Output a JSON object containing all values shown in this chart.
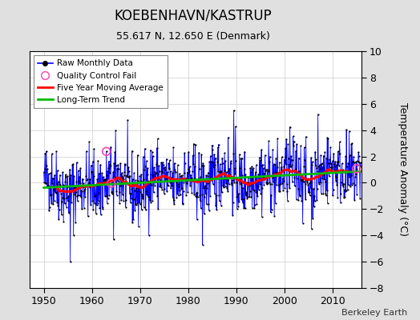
{
  "title": "KOEBENHAVN/KASTRUP",
  "subtitle": "55.617 N, 12.650 E (Denmark)",
  "ylabel": "Temperature Anomaly (°C)",
  "credit": "Berkeley Earth",
  "xlim": [
    1947,
    2016
  ],
  "ylim": [
    -8,
    10
  ],
  "yticks": [
    -8,
    -6,
    -4,
    -2,
    0,
    2,
    4,
    6,
    8,
    10
  ],
  "xticks": [
    1950,
    1960,
    1970,
    1980,
    1990,
    2000,
    2010
  ],
  "bg_color": "#e0e0e0",
  "plot_bg_color": "#ffffff",
  "raw_line_color": "#0000ff",
  "raw_dot_color": "#000000",
  "qc_fail_color": "#ff44aa",
  "moving_avg_color": "#ff0000",
  "trend_color": "#00bb00",
  "seed": 42,
  "n_months": 792,
  "start_year": 1950,
  "trend_slope": 0.018,
  "trend_intercept": -0.35,
  "qc_fail_indices": [
    156,
    168,
    780
  ]
}
